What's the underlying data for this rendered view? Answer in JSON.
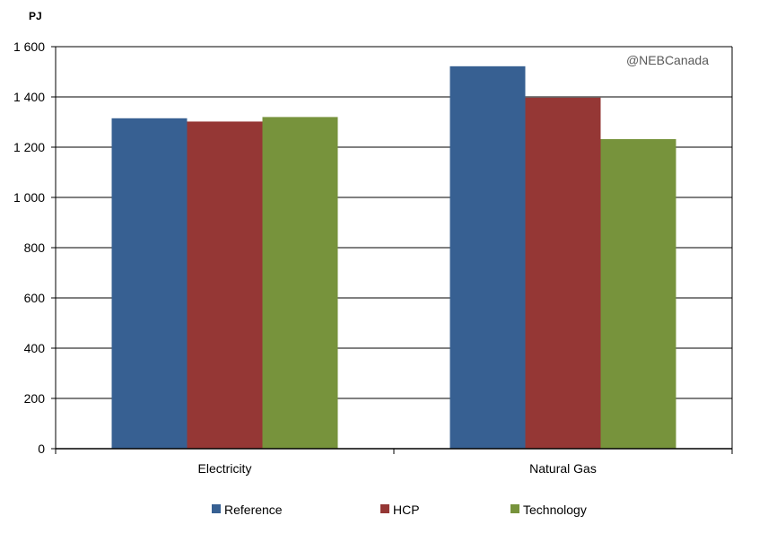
{
  "chart_data": {
    "type": "bar",
    "unit_label": "PJ",
    "categories": [
      "Electricity",
      "Natural Gas"
    ],
    "series": [
      {
        "name": "Reference",
        "color": "#376092",
        "values": [
          1315,
          1522
        ]
      },
      {
        "name": "HCP",
        "color": "#953735",
        "values": [
          1302,
          1397
        ]
      },
      {
        "name": "Technology",
        "color": "#77933C",
        "values": [
          1320,
          1232
        ]
      }
    ],
    "ylim": [
      0,
      1600
    ],
    "y_ticks": [
      0,
      200,
      400,
      600,
      800,
      1000,
      1200,
      1400,
      1600
    ],
    "y_tick_labels": [
      "0",
      "200",
      "400",
      "600",
      "800",
      "1  000",
      "1 200",
      "1 400",
      "1 600"
    ],
    "grid": true,
    "legend_position": "bottom",
    "watermark": "@NEBCanada"
  }
}
